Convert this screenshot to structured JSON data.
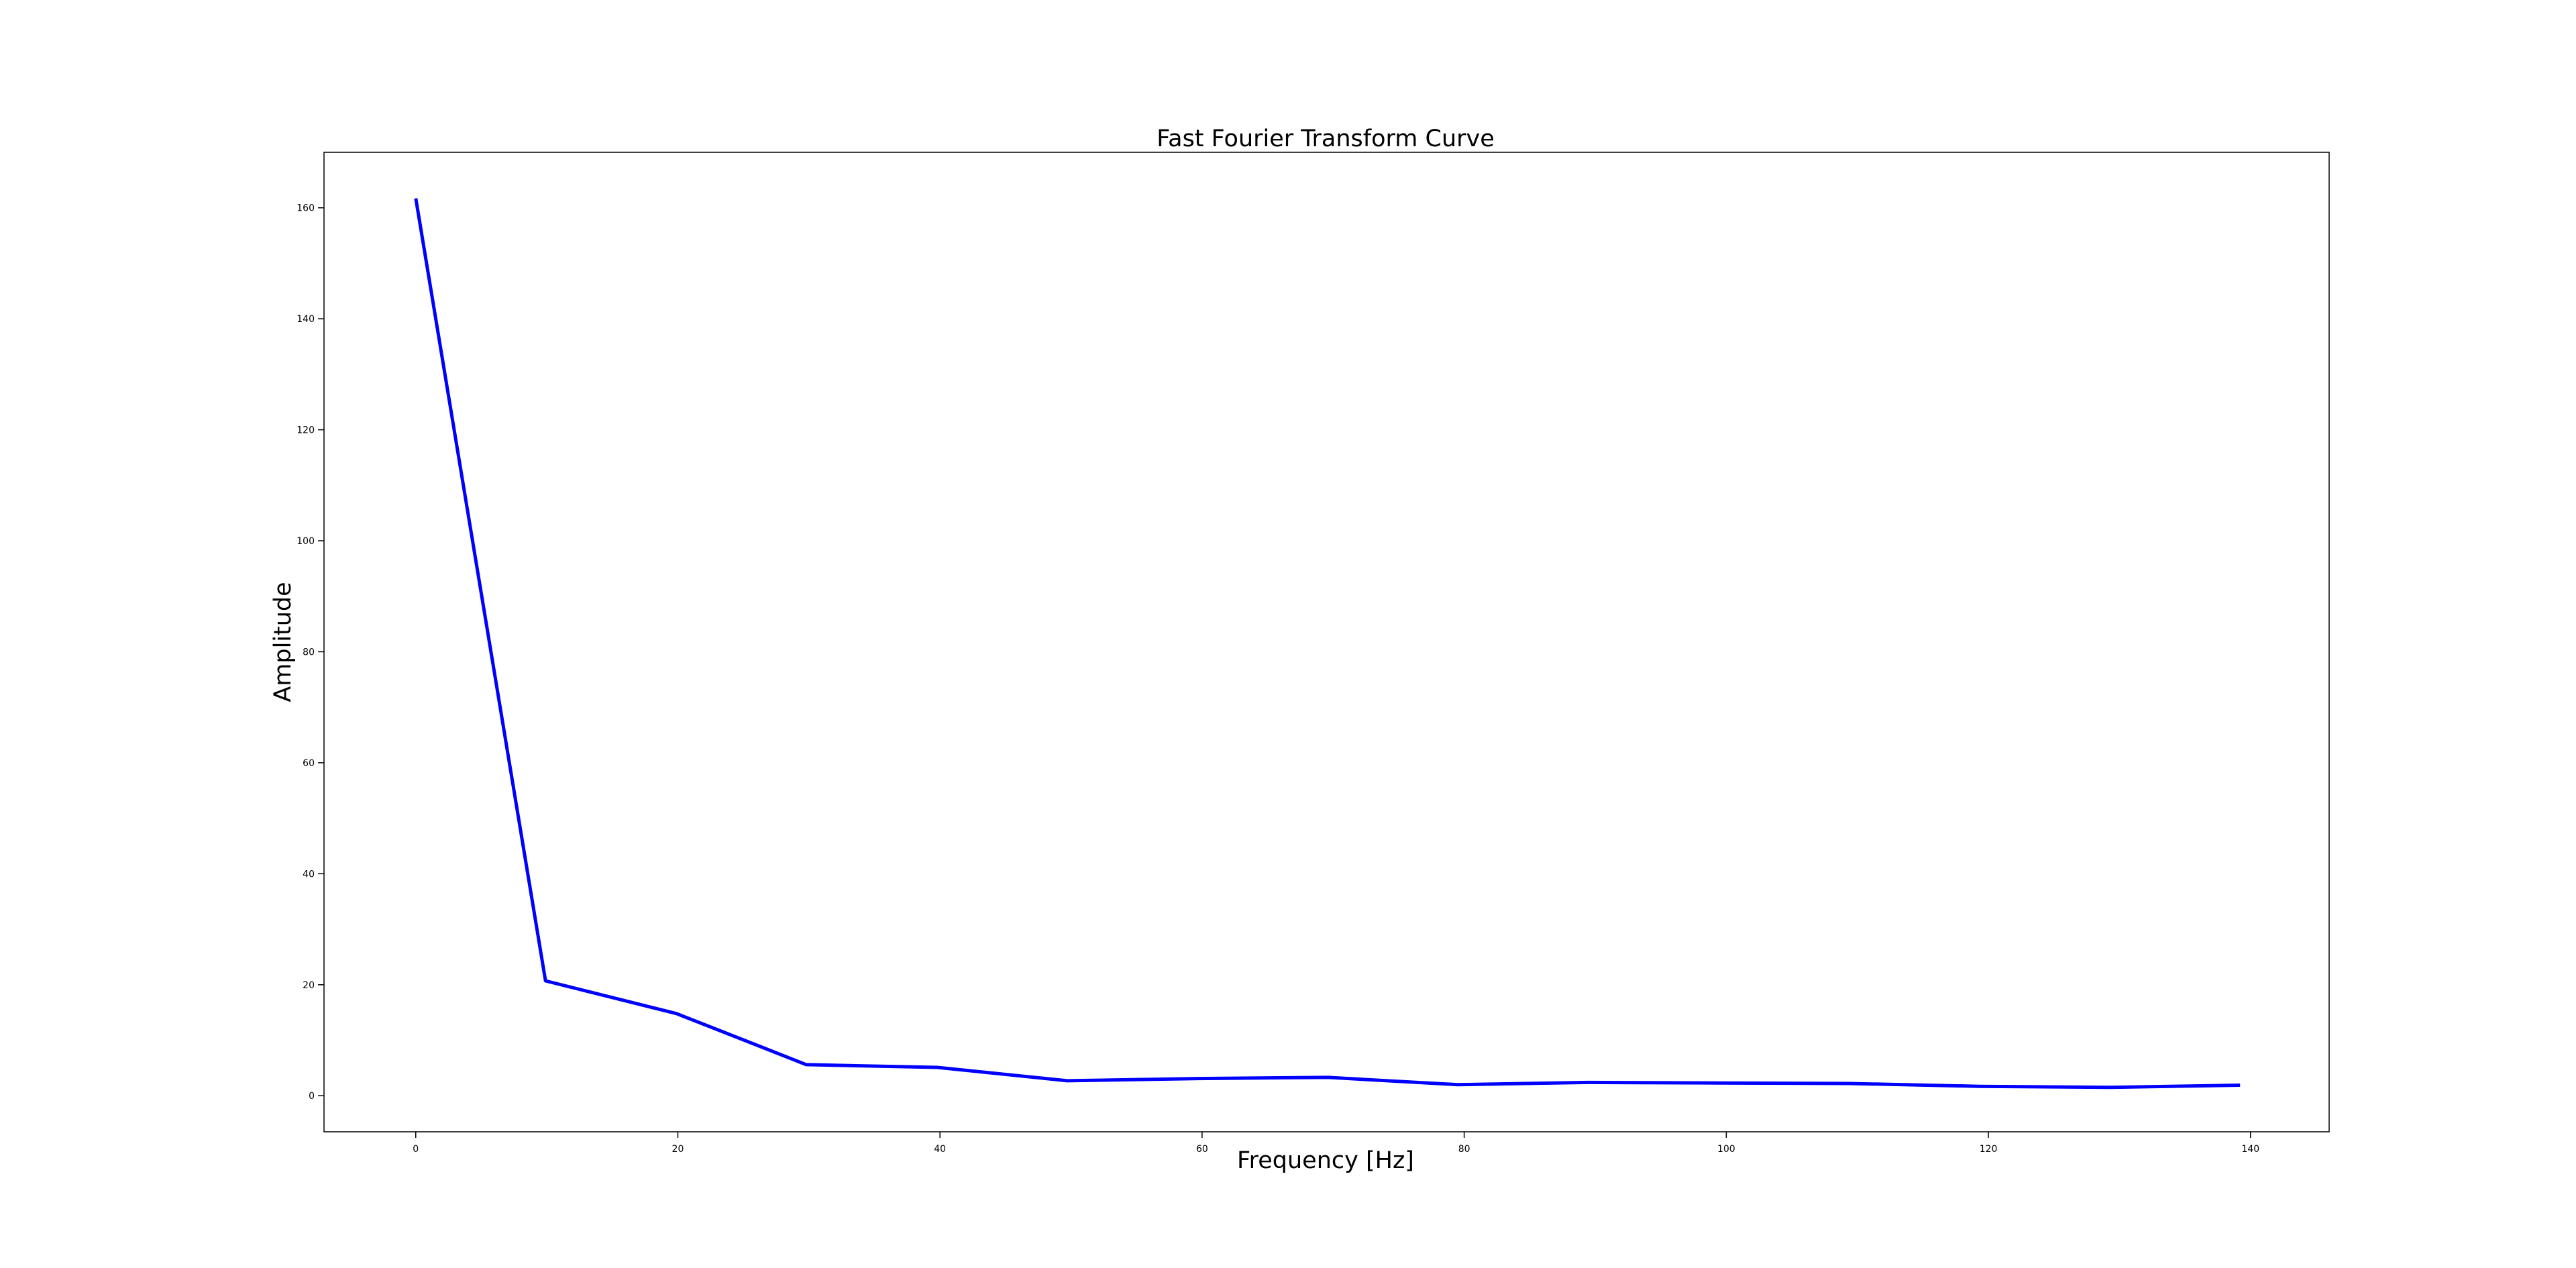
{
  "chart_data": {
    "type": "line",
    "title": "Fast Fourier Transform Curve",
    "xlabel": "Frequency [Hz]",
    "ylabel": "Amplitude",
    "xlim": [
      -7,
      146
    ],
    "ylim": [
      -6.5,
      170
    ],
    "x_ticks": [
      0,
      20,
      40,
      60,
      80,
      100,
      120,
      140
    ],
    "y_ticks": [
      0,
      20,
      40,
      60,
      80,
      100,
      120,
      140,
      160
    ],
    "grid": false,
    "series": [
      {
        "color": "#0000ff",
        "x": [
          0,
          9.9,
          19.9,
          29.8,
          39.8,
          49.7,
          59.7,
          69.6,
          79.5,
          89.5,
          99.4,
          109.4,
          119.3,
          129.3,
          139.2
        ],
        "y": [
          161.7,
          20.7,
          14.8,
          5.6,
          5.1,
          2.7,
          3.1,
          3.3,
          2.0,
          2.4,
          2.3,
          2.2,
          1.7,
          1.5,
          1.9
        ]
      }
    ]
  }
}
